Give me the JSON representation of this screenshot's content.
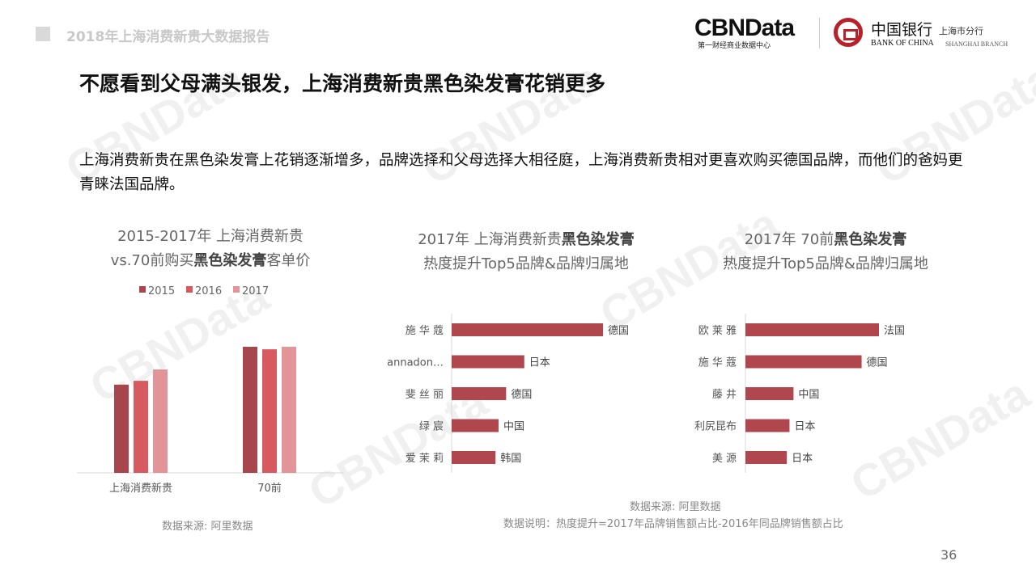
{
  "header": {
    "report_title": "2018年上海消费新贵大数据报告",
    "logo_cbn": "CBNData",
    "logo_cbn_sub": "第一财经商业数据中心",
    "logo_boc_cn": "中国银行",
    "logo_boc_en": "BANK OF CHINA",
    "logo_boc_branch_cn": "上海市分行",
    "logo_boc_branch_en": "SHANGHAI BRANCH",
    "watermark": "CBNData 第一财经商业数据中心"
  },
  "title": "不愿看到父母满头银发，上海消费新贵黑色染发膏花销更多",
  "description": "上海消费新贵在黑色染发膏上花销逐渐增多，品牌选择和父母选择大相径庭，上海消费新贵相对更喜欢购买德国品牌，而他们的爸妈更青睐法国品牌。",
  "colors": {
    "c2015": "#a8464e",
    "c2016": "#d65a60",
    "c2017": "#e39499",
    "hbar": "#b0464e"
  },
  "chart_data": [
    {
      "type": "bar",
      "title_line1": "2015-2017年 上海消费新贵",
      "title_line2_pre": "vs.70前购买",
      "title_line2_bold": "黑色染发膏",
      "title_line2_post": "客单价",
      "categories": [
        "上海消费新贵",
        "70前"
      ],
      "series": [
        {
          "name": "2015",
          "values": [
            70,
            100
          ]
        },
        {
          "name": "2016",
          "values": [
            73,
            98
          ]
        },
        {
          "name": "2017",
          "values": [
            82,
            100
          ]
        }
      ],
      "legend": "top",
      "grid": false,
      "source": "数据来源: 阿里数据"
    },
    {
      "type": "bar",
      "orientation": "horizontal",
      "title_line1_pre": "2017年  上海消费新贵",
      "title_line1_bold": "黑色染发膏",
      "title_line2": "热度提升Top5品牌&品牌归属地",
      "categories": [
        "施 华 蔻",
        "annadon…",
        "斐 丝 丽",
        "绿   宸",
        "爱 茉 莉"
      ],
      "values": [
        100,
        48,
        36,
        31,
        29
      ],
      "labels": [
        "德国",
        "日本",
        "德国",
        "中国",
        "韩国"
      ]
    },
    {
      "type": "bar",
      "orientation": "horizontal",
      "title_line1_pre": "2017年  70前",
      "title_line1_bold": "黑色染发膏",
      "title_line2": "热度提升Top5品牌&品牌归属地",
      "categories": [
        "欧 莱 雅",
        "施 华 蔻",
        "藤    井",
        "利尻昆布",
        "美    源"
      ],
      "values": [
        100,
        87,
        36,
        33,
        31
      ],
      "labels": [
        "法国",
        "德国",
        "中国",
        "日本",
        "日本"
      ]
    }
  ],
  "footnotes": {
    "source": "数据来源: 阿里数据",
    "note": "数据说明：热度提升=2017年品牌销售额占比-2016年同品牌销售额占比"
  },
  "page_number": "36"
}
